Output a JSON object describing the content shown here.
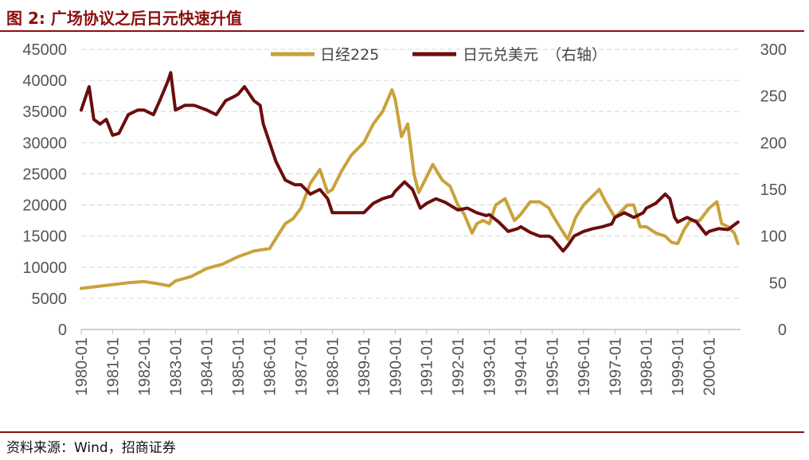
{
  "header": {
    "title": "图 2:  广场协议之后日元快速升值"
  },
  "footer": {
    "source": "资料来源：Wind，招商证券"
  },
  "colors": {
    "nikkei": "#c9a23b",
    "usdjpy": "#6b0d0d",
    "rule": "#8c0f0f",
    "grid": "#d6d6d6"
  },
  "chart_data": {
    "type": "line",
    "title": "",
    "legend_position": "top-center",
    "grid": true,
    "x_tick_labels": [
      "1980-01",
      "1981-01",
      "1982-01",
      "1983-01",
      "1984-01",
      "1985-01",
      "1986-01",
      "1987-01",
      "1988-01",
      "1989-01",
      "1990-01",
      "1991-01",
      "1992-01",
      "1993-01",
      "1994-01",
      "1995-01",
      "1996-01",
      "1997-01",
      "1998-01",
      "1999-01",
      "2000-01"
    ],
    "x_range": [
      1980.0,
      2001.0
    ],
    "y_left": {
      "range": [
        0,
        45000
      ],
      "ticks": [
        0,
        5000,
        10000,
        15000,
        20000,
        25000,
        30000,
        35000,
        40000,
        45000
      ]
    },
    "y_right": {
      "range": [
        0,
        300
      ],
      "ticks": [
        0,
        50,
        100,
        150,
        200,
        250,
        300
      ],
      "note": "（右轴）"
    },
    "series": [
      {
        "name": "日经225",
        "axis": "left",
        "points": [
          [
            1980.0,
            6600
          ],
          [
            1980.5,
            6900
          ],
          [
            1981.0,
            7200
          ],
          [
            1981.5,
            7500
          ],
          [
            1982.0,
            7700
          ],
          [
            1982.5,
            7300
          ],
          [
            1982.8,
            7000
          ],
          [
            1983.0,
            7800
          ],
          [
            1983.5,
            8500
          ],
          [
            1984.0,
            9800
          ],
          [
            1984.5,
            10500
          ],
          [
            1985.0,
            11700
          ],
          [
            1985.5,
            12600
          ],
          [
            1986.0,
            13000
          ],
          [
            1986.25,
            15000
          ],
          [
            1986.5,
            17000
          ],
          [
            1986.75,
            17800
          ],
          [
            1987.0,
            19500
          ],
          [
            1987.3,
            23500
          ],
          [
            1987.6,
            25700
          ],
          [
            1987.85,
            22000
          ],
          [
            1988.0,
            22500
          ],
          [
            1988.3,
            25500
          ],
          [
            1988.6,
            28000
          ],
          [
            1988.9,
            29500
          ],
          [
            1989.0,
            30000
          ],
          [
            1989.3,
            33000
          ],
          [
            1989.6,
            35000
          ],
          [
            1989.9,
            38500
          ],
          [
            1990.0,
            37000
          ],
          [
            1990.2,
            31000
          ],
          [
            1990.4,
            33000
          ],
          [
            1990.6,
            25000
          ],
          [
            1990.75,
            22000
          ],
          [
            1991.0,
            24500
          ],
          [
            1991.2,
            26500
          ],
          [
            1991.5,
            24000
          ],
          [
            1991.75,
            23000
          ],
          [
            1992.0,
            20000
          ],
          [
            1992.2,
            18500
          ],
          [
            1992.45,
            15500
          ],
          [
            1992.6,
            17000
          ],
          [
            1992.8,
            17500
          ],
          [
            1993.0,
            17000
          ],
          [
            1993.2,
            20000
          ],
          [
            1993.5,
            21000
          ],
          [
            1993.8,
            17500
          ],
          [
            1994.0,
            18500
          ],
          [
            1994.3,
            20500
          ],
          [
            1994.6,
            20500
          ],
          [
            1994.9,
            19500
          ],
          [
            1995.0,
            18500
          ],
          [
            1995.3,
            16000
          ],
          [
            1995.5,
            14500
          ],
          [
            1995.75,
            18000
          ],
          [
            1996.0,
            20000
          ],
          [
            1996.3,
            21500
          ],
          [
            1996.5,
            22500
          ],
          [
            1996.7,
            20500
          ],
          [
            1997.0,
            18000
          ],
          [
            1997.4,
            20000
          ],
          [
            1997.6,
            20000
          ],
          [
            1997.8,
            16500
          ],
          [
            1998.0,
            16500
          ],
          [
            1998.3,
            15500
          ],
          [
            1998.6,
            15000
          ],
          [
            1998.8,
            14000
          ],
          [
            1999.0,
            13800
          ],
          [
            1999.2,
            16000
          ],
          [
            1999.4,
            17500
          ],
          [
            1999.7,
            17500
          ],
          [
            2000.0,
            19500
          ],
          [
            2000.25,
            20500
          ],
          [
            2000.4,
            17000
          ],
          [
            2000.6,
            16500
          ],
          [
            2000.8,
            15500
          ],
          [
            2000.92,
            13800
          ]
        ]
      },
      {
        "name": "日元兑美元",
        "axis": "right",
        "points": [
          [
            1980.0,
            235
          ],
          [
            1980.15,
            250
          ],
          [
            1980.25,
            260
          ],
          [
            1980.4,
            225
          ],
          [
            1980.6,
            220
          ],
          [
            1980.8,
            225
          ],
          [
            1981.0,
            208
          ],
          [
            1981.2,
            210
          ],
          [
            1981.5,
            230
          ],
          [
            1981.8,
            235
          ],
          [
            1982.0,
            235
          ],
          [
            1982.3,
            230
          ],
          [
            1982.5,
            245
          ],
          [
            1982.75,
            265
          ],
          [
            1982.85,
            275
          ],
          [
            1983.0,
            235
          ],
          [
            1983.3,
            240
          ],
          [
            1983.6,
            240
          ],
          [
            1984.0,
            235
          ],
          [
            1984.3,
            230
          ],
          [
            1984.6,
            245
          ],
          [
            1984.9,
            250
          ],
          [
            1985.0,
            252
          ],
          [
            1985.2,
            260
          ],
          [
            1985.5,
            245
          ],
          [
            1985.7,
            240
          ],
          [
            1985.8,
            220
          ],
          [
            1986.0,
            200
          ],
          [
            1986.2,
            180
          ],
          [
            1986.5,
            160
          ],
          [
            1986.8,
            155
          ],
          [
            1987.0,
            155
          ],
          [
            1987.3,
            145
          ],
          [
            1987.6,
            150
          ],
          [
            1987.85,
            140
          ],
          [
            1988.0,
            125
          ],
          [
            1988.4,
            125
          ],
          [
            1988.7,
            125
          ],
          [
            1989.0,
            125
          ],
          [
            1989.3,
            135
          ],
          [
            1989.6,
            140
          ],
          [
            1989.9,
            143
          ],
          [
            1990.0,
            148
          ],
          [
            1990.3,
            158
          ],
          [
            1990.55,
            150
          ],
          [
            1990.8,
            130
          ],
          [
            1991.0,
            135
          ],
          [
            1991.3,
            140
          ],
          [
            1991.6,
            136
          ],
          [
            1991.9,
            130
          ],
          [
            1992.0,
            128
          ],
          [
            1992.3,
            130
          ],
          [
            1992.6,
            125
          ],
          [
            1992.9,
            122
          ],
          [
            1993.0,
            123
          ],
          [
            1993.3,
            115
          ],
          [
            1993.6,
            105
          ],
          [
            1993.9,
            108
          ],
          [
            1994.0,
            110
          ],
          [
            1994.3,
            104
          ],
          [
            1994.6,
            100
          ],
          [
            1994.9,
            100
          ],
          [
            1995.0,
            98
          ],
          [
            1995.2,
            90
          ],
          [
            1995.35,
            84
          ],
          [
            1995.5,
            90
          ],
          [
            1995.7,
            100
          ],
          [
            1996.0,
            105
          ],
          [
            1996.3,
            108
          ],
          [
            1996.6,
            110
          ],
          [
            1996.9,
            113
          ],
          [
            1997.0,
            120
          ],
          [
            1997.3,
            125
          ],
          [
            1997.6,
            120
          ],
          [
            1997.9,
            125
          ],
          [
            1998.0,
            130
          ],
          [
            1998.3,
            135
          ],
          [
            1998.6,
            145
          ],
          [
            1998.75,
            140
          ],
          [
            1998.9,
            120
          ],
          [
            1999.0,
            115
          ],
          [
            1999.3,
            120
          ],
          [
            1999.6,
            115
          ],
          [
            1999.9,
            102
          ],
          [
            2000.0,
            105
          ],
          [
            2000.3,
            108
          ],
          [
            2000.6,
            107
          ],
          [
            2000.92,
            115
          ]
        ]
      }
    ]
  }
}
